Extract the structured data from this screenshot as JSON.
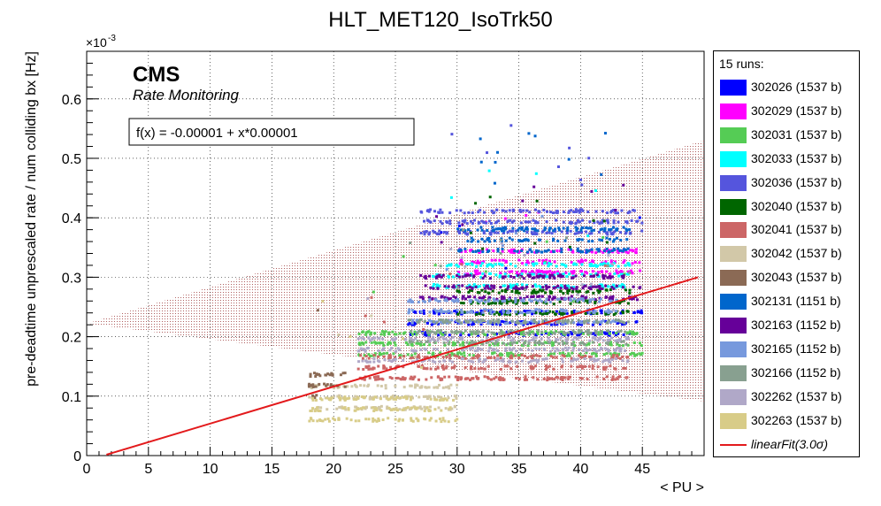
{
  "chart_data": {
    "type": "scatter",
    "title": "HLT_MET120_IsoTrk50",
    "xlabel": "< PU >",
    "ylabel": "pre-deadtime unprescaled rate / num colliding bx [Hz]",
    "y_exponent": "×10",
    "y_exponent_power": "-3",
    "xlim": [
      0,
      50
    ],
    "ylim": [
      0,
      0.00068
    ],
    "x_ticks": [
      "0",
      "5",
      "10",
      "15",
      "20",
      "25",
      "30",
      "35",
      "40",
      "45"
    ],
    "y_ticks": [
      "0",
      "0.1",
      "0.2",
      "0.3",
      "0.4",
      "0.5",
      "0.6"
    ],
    "brand": "CMS",
    "subtitle": "Rate Monitoring",
    "fit_text": "f(x) = -0.00001 + x*0.00001",
    "fit": {
      "intercept": -8.5e-06,
      "slope": 6.23e-06,
      "x_range": [
        1.6,
        49.5
      ]
    },
    "band": {
      "label_sigma": "3.0σ",
      "lower_at_x0": 0.000222,
      "lower_at_x50": 9.1e-05,
      "upper_at_x0": 0.000222,
      "upper_at_x50": 0.00053
    },
    "legend_header": "15 runs:",
    "series": [
      {
        "name": "302026 (1537 b)",
        "color": "#0000ff",
        "x_range": [
          26,
          45
        ],
        "y_base": 0.000205
      },
      {
        "name": "302029 (1537 b)",
        "color": "#ff00ff",
        "x_range": [
          30,
          45
        ],
        "y_base": 0.000308
      },
      {
        "name": "302031 (1537 b)",
        "color": "#55cc55",
        "x_range": [
          22,
          45
        ],
        "y_base": 0.00017
      },
      {
        "name": "302033 (1537 b)",
        "color": "#00ffff",
        "x_range": [
          28,
          44
        ],
        "y_base": 0.000285
      },
      {
        "name": "302036 (1537 b)",
        "color": "#5555dd",
        "x_range": [
          27,
          45
        ],
        "y_base": 0.000375
      },
      {
        "name": "302040 (1537 b)",
        "color": "#006600",
        "x_range": [
          30,
          44
        ],
        "y_base": 0.00024
      },
      {
        "name": "302041 (1537 b)",
        "color": "#cc6666",
        "x_range": [
          22,
          44
        ],
        "y_base": 0.00013
      },
      {
        "name": "302042 (1537 b)",
        "color": "#d2c8a8",
        "x_range": [
          18,
          30
        ],
        "y_base": 8e-05
      },
      {
        "name": "302043 (1537 b)",
        "color": "#8b6a55",
        "x_range": [
          18,
          21
        ],
        "y_base": 0.0001
      },
      {
        "name": "302131 (1151 b)",
        "color": "#0066cc",
        "x_range": [
          30,
          44
        ],
        "y_base": 0.000345
      },
      {
        "name": "302163 (1152 b)",
        "color": "#660099",
        "x_range": [
          27,
          45
        ],
        "y_base": 0.000265
      },
      {
        "name": "302165 (1152 b)",
        "color": "#7799dd",
        "x_range": [
          26,
          43
        ],
        "y_base": 0.000225
      },
      {
        "name": "302166 (1152 b)",
        "color": "#88a090",
        "x_range": [
          26,
          44
        ],
        "y_base": 0.00019
      },
      {
        "name": "302262 (1537 b)",
        "color": "#b0a8c8",
        "x_range": [
          22,
          44
        ],
        "y_base": 0.00016
      },
      {
        "name": "302263 (1537 b)",
        "color": "#d8cc88",
        "x_range": [
          18,
          30
        ],
        "y_base": 6e-05
      }
    ],
    "fit_legend_label": "linearFit(3.0σ)",
    "grid": true,
    "legend_position": "right"
  }
}
